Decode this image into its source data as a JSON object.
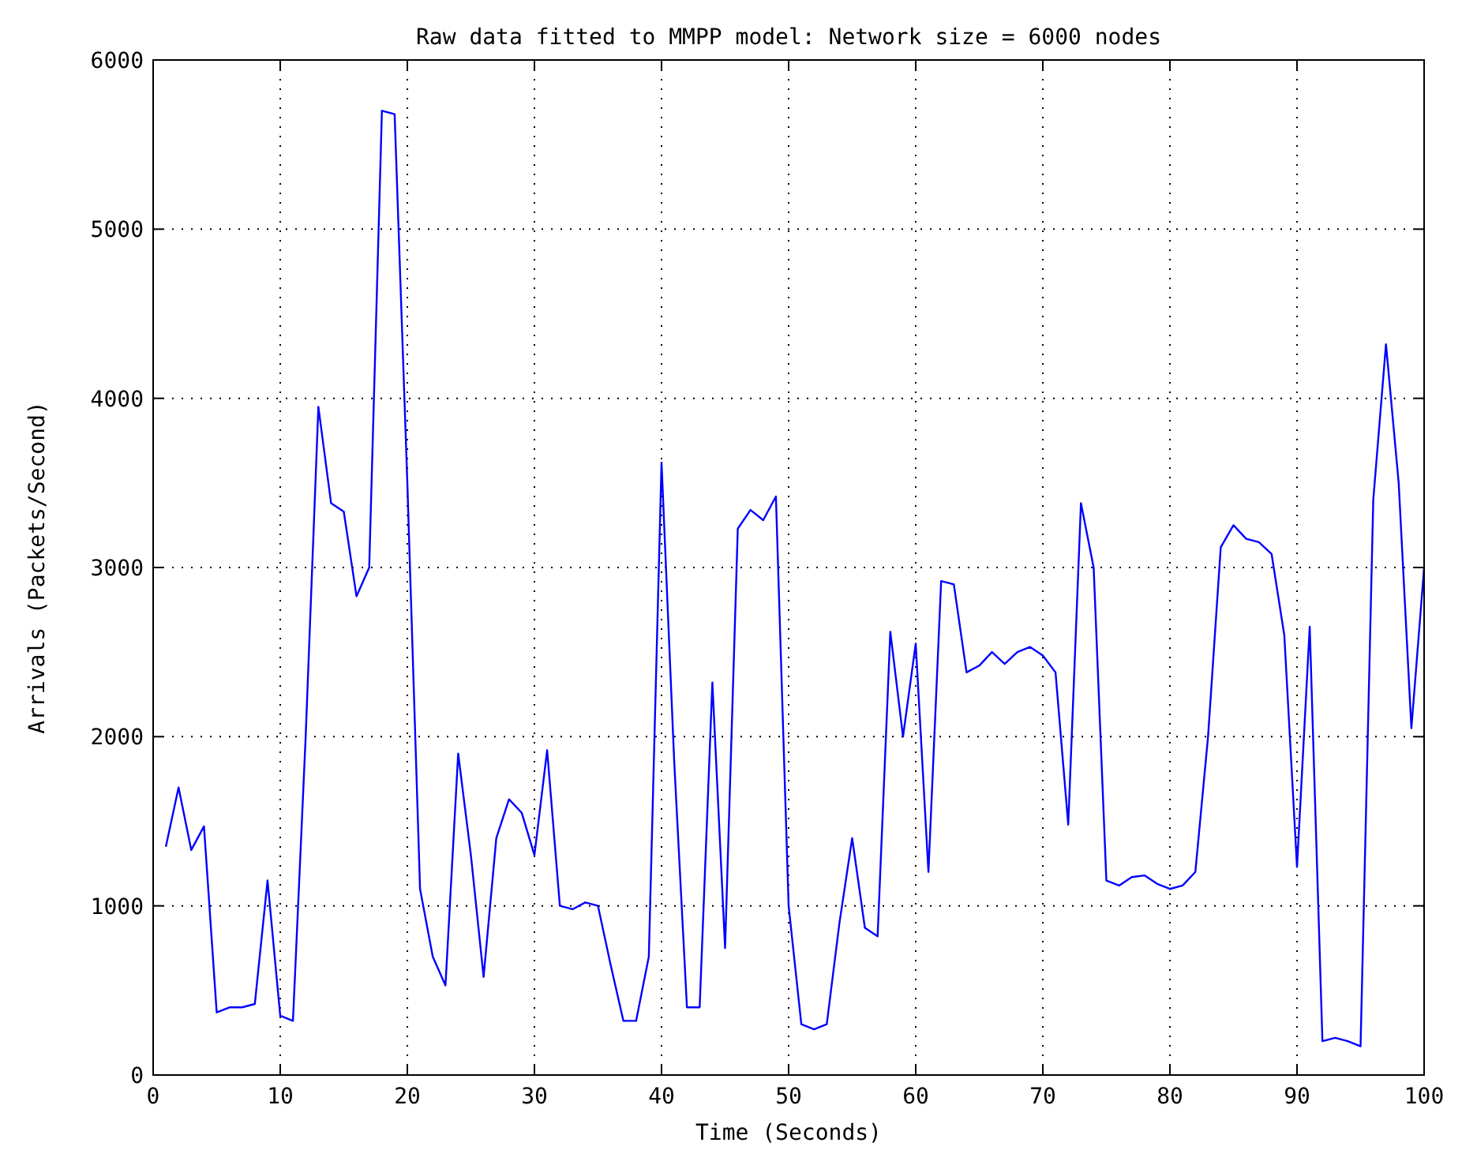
{
  "chart_data": {
    "type": "line",
    "title": "Raw data fitted to MMPP model: Network size = 6000 nodes",
    "xlabel": "Time (Seconds)",
    "ylabel": "Arrivals (Packets/Second)",
    "x": [
      1,
      2,
      3,
      4,
      5,
      6,
      7,
      8,
      9,
      10,
      11,
      12,
      13,
      14,
      15,
      16,
      17,
      18,
      19,
      20,
      21,
      22,
      23,
      24,
      25,
      26,
      27,
      28,
      29,
      30,
      31,
      32,
      33,
      34,
      35,
      36,
      37,
      38,
      39,
      40,
      41,
      42,
      43,
      44,
      45,
      46,
      47,
      48,
      49,
      50,
      51,
      52,
      53,
      54,
      55,
      56,
      57,
      58,
      59,
      60,
      61,
      62,
      63,
      64,
      65,
      66,
      67,
      68,
      69,
      70,
      71,
      72,
      73,
      74,
      75,
      76,
      77,
      78,
      79,
      80,
      81,
      82,
      83,
      84,
      85,
      86,
      87,
      88,
      89,
      90,
      91,
      92,
      93,
      94,
      95,
      96,
      97,
      98,
      99,
      100
    ],
    "series": [
      {
        "color": "#0000ff",
        "values": [
          1350,
          1700,
          1330,
          1470,
          370,
          400,
          400,
          420,
          1150,
          350,
          320,
          2000,
          3950,
          3380,
          3330,
          2830,
          3000,
          5700,
          5680,
          3500,
          1100,
          700,
          530,
          1900,
          1300,
          580,
          1400,
          1630,
          1550,
          1300,
          1920,
          1000,
          980,
          1020,
          1000,
          650,
          320,
          320,
          700,
          3620,
          1850,
          400,
          400,
          2320,
          750,
          3230,
          3340,
          3280,
          3420,
          1000,
          300,
          270,
          300,
          900,
          1400,
          870,
          820,
          2620,
          2000,
          2550,
          1200,
          2920,
          2900,
          2380,
          2420,
          2500,
          2430,
          2500,
          2530,
          2480,
          2380,
          1480,
          3380,
          3000,
          1150,
          1120,
          1170,
          1180,
          1130,
          1100,
          1120,
          1200,
          2000,
          3120,
          3250,
          3170,
          3150,
          3080,
          2600,
          1230,
          2650,
          200,
          220,
          200,
          170,
          3400,
          4320,
          3500,
          2050,
          3000
        ]
      }
    ],
    "xlim": [
      0,
      100
    ],
    "xticks": [
      0,
      10,
      20,
      30,
      40,
      50,
      60,
      70,
      80,
      90,
      100
    ],
    "ylim": [
      0,
      6000
    ],
    "yticks": [
      0,
      1000,
      2000,
      3000,
      4000,
      5000,
      6000
    ],
    "grid": true,
    "marker": "none",
    "line_style": "solid"
  }
}
